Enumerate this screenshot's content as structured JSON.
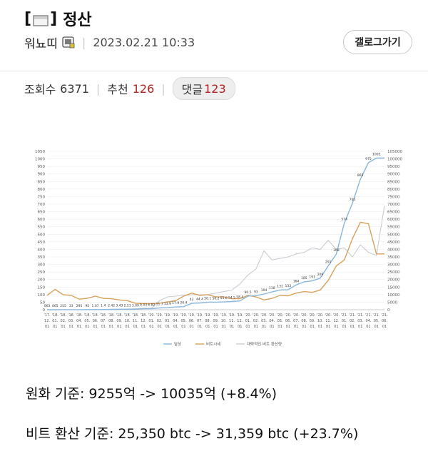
{
  "header": {
    "title_prefix": "[",
    "title_suffix": "]",
    "title": "정산",
    "author": "워뇨띠",
    "datetime": "2023.02.21 10:33",
    "gallery_button": "갤로그가기",
    "flag_icon": "flag-icon",
    "level_icon": "member-level-icon"
  },
  "stats": {
    "views_label": "조회수",
    "views": "6371",
    "recommend_label": "추천",
    "recommend": "126",
    "comments_label": "댓글",
    "comments": "123"
  },
  "colors": {
    "accent_red": "#b0201f",
    "series_goal": "#8ab6dc",
    "series_bit": "#d9a05b",
    "series_converted": "#c9ccd2"
  },
  "chart_data": {
    "type": "line",
    "left_axis": {
      "ticks": [
        "1050",
        "1000",
        "950",
        "900",
        "850",
        "800",
        "750",
        "700",
        "650",
        "600",
        "550",
        "500",
        "450",
        "400",
        "350",
        "300",
        "250",
        "200",
        "150",
        "100",
        "50",
        "0"
      ],
      "ylim": [
        0,
        1050
      ]
    },
    "right_axis": {
      "ticks": [
        "105000",
        "100000",
        "95000",
        "90000",
        "85000",
        "80000",
        "75000",
        "70000",
        "65000",
        "60000",
        "55000",
        "50000",
        "45000",
        "40000",
        "35000",
        "30000",
        "25000",
        "20000",
        "15000",
        "10000",
        "5000",
        "0"
      ],
      "ylim": [
        0,
        105000
      ]
    },
    "year_labels": [
      "'17.",
      "'18.",
      "'18.",
      "'18.",
      "'18.",
      "'18.",
      "'18.",
      "'18.",
      "'18.",
      "'18.",
      "'18.",
      "'18.",
      "'18.",
      "'19.",
      "'19.",
      "'19.",
      "'19.",
      "'19.",
      "'19.",
      "'19.",
      "'19.",
      "'19.",
      "'19.",
      "'19.",
      "'19.",
      "'20.",
      "'20.",
      "'20.",
      "'20.",
      "'20.",
      "'20.",
      "'20.",
      "'20.",
      "'20.",
      "'20.",
      "'20.",
      "'20.",
      "'21.",
      "'21.",
      "'21.",
      "'21.",
      "'21.",
      "'21."
    ],
    "month_labels": [
      "12.",
      "01.",
      "02.",
      "03.",
      "04.",
      "05.",
      "06.",
      "07.",
      "08.",
      "09.",
      "10.",
      "11.",
      "12.",
      "01.",
      "02.",
      "03.",
      "04.",
      "05.",
      "06.",
      "07.",
      "08.",
      "09.",
      "10.",
      "11.",
      "12.",
      "01.",
      "02.",
      "03.",
      "04.",
      "05.",
      "06.",
      "07.",
      "08.",
      "09.",
      "10.",
      "11.",
      "12.",
      "01.",
      "02.",
      "03.",
      "04.",
      "05.",
      "06."
    ],
    "day_labels": [
      "01",
      "01",
      "01",
      "01",
      "01",
      "01",
      "01",
      "01",
      "01",
      "01",
      "01",
      "01",
      "01",
      "01",
      "01",
      "01",
      "01",
      "01",
      "01",
      "01",
      "01",
      "01",
      "01",
      "01",
      "01",
      "01",
      "01",
      "01",
      "01",
      "01",
      "01",
      "01",
      "01",
      "01",
      "01",
      "01",
      "01",
      "01",
      "01",
      "01",
      "01",
      "01",
      "01"
    ],
    "series": [
      {
        "name": "달성",
        "axis": "left",
        "values": [
          0.063,
          0.065,
          0.255,
          0.33,
          0.295,
          0.95,
          1.07,
          1.4,
          2.42,
          3.43,
          2.23,
          3.09,
          6.53,
          6.82,
          11.7,
          13.9,
          17.9,
          20.4,
          42,
          44.4,
          50.1,
          50.2,
          51.6,
          54.5,
          58.4,
          90.5,
          93,
          104,
          118,
          131,
          133,
          164,
          185,
          191,
          209,
          291,
          368,
          574,
          705,
          865,
          975,
          1005,
          1005
        ],
        "labels": [
          "063",
          "065",
          "255",
          "33",
          "295",
          "95",
          "1.07",
          "1.4",
          "2.42",
          "3.43",
          "2.23",
          "3.09",
          "6.53",
          "6.82",
          "11.7",
          "13.9",
          "17.9",
          "20.4",
          "42",
          "44.4",
          "50.1",
          "50.2",
          "51.6",
          "54.5",
          "58.4",
          "90.5",
          "93",
          "104",
          "118",
          "131",
          "133",
          "164",
          "185",
          "191",
          "209",
          "291",
          "368",
          "574",
          "705",
          "865",
          "975",
          "1005",
          ""
        ]
      },
      {
        "name": "비트시세",
        "axis": "right",
        "values": [
          9500,
          13500,
          10000,
          9500,
          7000,
          7500,
          9000,
          7500,
          7300,
          6500,
          6000,
          4300,
          4000,
          4000,
          4200,
          5200,
          6000,
          9000,
          11000,
          9500,
          10000,
          8500,
          8500,
          7300,
          7300,
          9500,
          8500,
          6500,
          7500,
          9500,
          9200,
          11000,
          12000,
          11500,
          13000,
          19500,
          29000,
          33000,
          47000,
          58000,
          57000,
          37000,
          37000
        ]
      },
      {
        "name": "대략적인 비트 환산량",
        "axis": "left",
        "values": [
          0,
          0,
          0,
          0,
          0,
          0,
          0,
          0,
          0,
          3,
          5,
          7,
          9,
          10,
          60,
          85,
          90,
          95,
          100,
          100,
          100,
          110,
          120,
          130,
          170,
          230,
          270,
          390,
          330,
          340,
          350,
          370,
          380,
          410,
          400,
          460,
          400,
          410,
          350,
          430,
          380,
          360,
          690
        ]
      }
    ],
    "legend": [
      "달성",
      "비트시세",
      "대략적인 비트 환산량"
    ],
    "legend_position": "bottom"
  },
  "body": {
    "line1": "원화 기준: 9255억 -> 10035억 (+8.4%)",
    "line2": "비트 환산 기준: 25,350 btc -> 31,359 btc (+23.7%)"
  }
}
